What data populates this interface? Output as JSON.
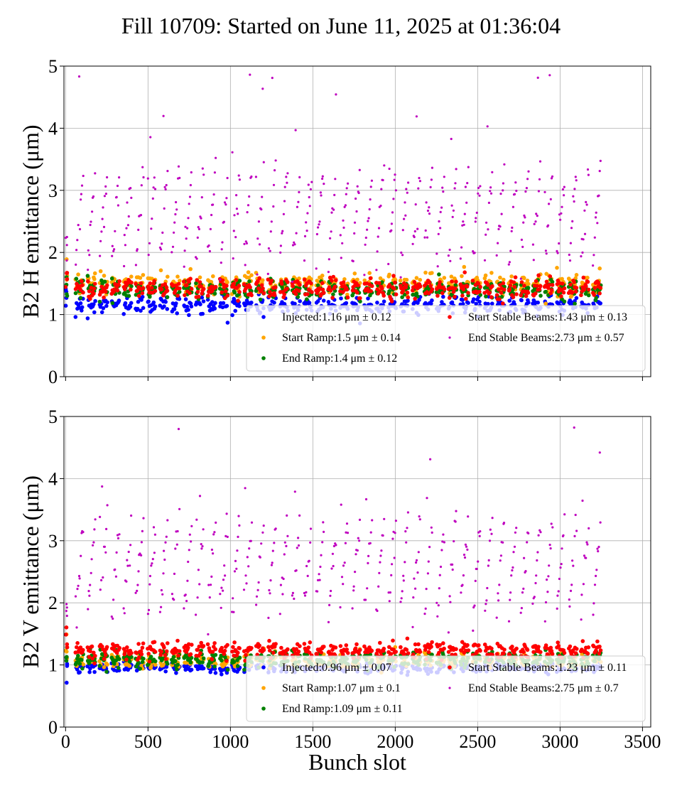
{
  "figure": {
    "title": "Fill 10709: Started on June 11, 2025 at 01:36:04"
  },
  "chart_data": [
    {
      "type": "scatter",
      "ylabel": "B2 H emittance (μm)",
      "xlabel": "",
      "xlim": [
        -10,
        3550
      ],
      "ylim": [
        0,
        5
      ],
      "xticks": [
        0,
        500,
        1000,
        1500,
        2000,
        2500,
        3000,
        3500
      ],
      "yticks": [
        0,
        1,
        2,
        3,
        4,
        5
      ],
      "grid": true,
      "show_xticklabels": false,
      "legend_location": "lower-right",
      "series": [
        {
          "name": "Injected",
          "label": "Injected:1.16 μm ± 0.12",
          "color": "#0000ff",
          "mean": 1.16,
          "std": 0.12
        },
        {
          "name": "Start Ramp",
          "label": "Start Ramp:1.5 μm ± 0.14",
          "color": "#ffa500",
          "mean": 1.5,
          "std": 0.14
        },
        {
          "name": "End Ramp",
          "label": "End Ramp:1.4 μm ± 0.12",
          "color": "#008000",
          "mean": 1.4,
          "std": 0.12
        },
        {
          "name": "Start Stable Beams",
          "label": "Start Stable Beams:1.43 μm ± 0.13",
          "color": "#ff0000",
          "mean": 1.43,
          "std": 0.13
        },
        {
          "name": "End Stable Beams",
          "label": "End Stable Beams:2.73 μm ± 0.57",
          "color": "#bf00bf",
          "mean": 2.73,
          "std": 0.57
        }
      ]
    },
    {
      "type": "scatter",
      "ylabel": "B2 V emittance (μm)",
      "xlabel": "Bunch slot",
      "xlim": [
        -10,
        3550
      ],
      "ylim": [
        0,
        5
      ],
      "xticks": [
        0,
        500,
        1000,
        1500,
        2000,
        2500,
        3000,
        3500
      ],
      "yticks": [
        0,
        1,
        2,
        3,
        4,
        5
      ],
      "grid": true,
      "show_xticklabels": true,
      "legend_location": "lower-right",
      "series": [
        {
          "name": "Injected",
          "label": "Injected:0.96 μm ± 0.07",
          "color": "#0000ff",
          "mean": 0.96,
          "std": 0.07
        },
        {
          "name": "Start Ramp",
          "label": "Start Ramp:1.07 μm ± 0.1",
          "color": "#ffa500",
          "mean": 1.07,
          "std": 0.1
        },
        {
          "name": "End Ramp",
          "label": "End Ramp:1.09 μm ± 0.11",
          "color": "#008000",
          "mean": 1.09,
          "std": 0.11
        },
        {
          "name": "Start Stable Beams",
          "label": "Start Stable Beams:1.23 μm ± 0.11",
          "color": "#ff0000",
          "mean": 1.23,
          "std": 0.11
        },
        {
          "name": "End Stable Beams",
          "label": "End Stable Beams:2.75 μm ± 0.7",
          "color": "#bf00bf",
          "mean": 2.75,
          "std": 0.7
        }
      ]
    }
  ]
}
